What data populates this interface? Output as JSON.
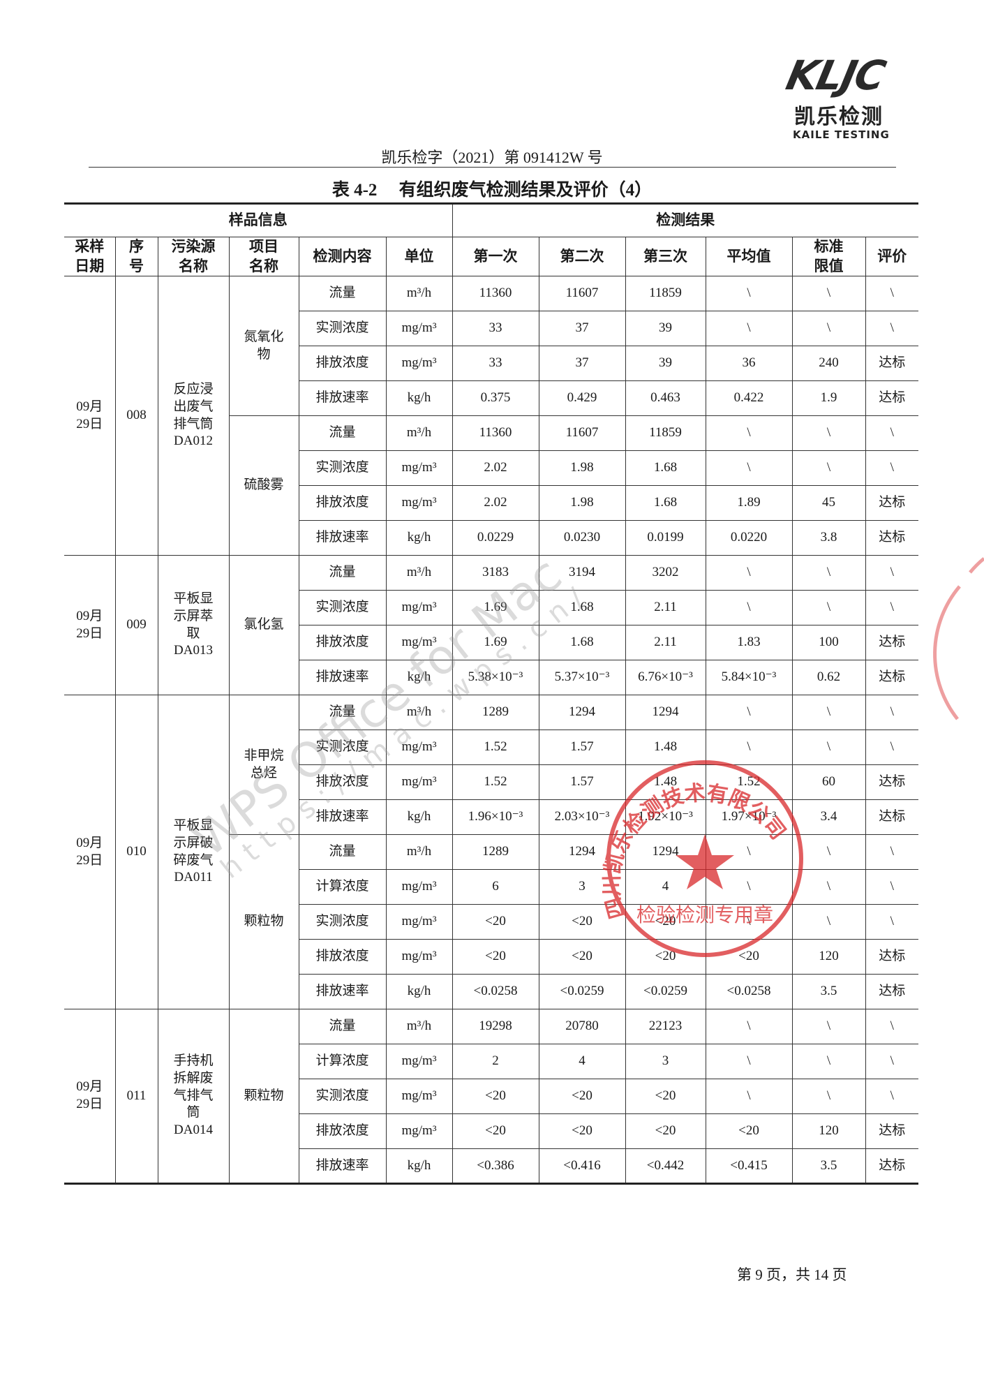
{
  "header": {
    "logo": "KLJC",
    "brand": "凯乐检测",
    "brand_en": "KAILE TESTING",
    "doc_no": "凯乐检字（2021）第 091412W 号"
  },
  "table": {
    "title": "表 4-2　 有组织废气检测结果及评价（4）",
    "group_headers": [
      "样品信息",
      "检测结果"
    ],
    "columns": [
      "采样\n日期",
      "序\n号",
      "污染源\n名称",
      "项目\n名称",
      "检测内容",
      "单位",
      "第一次",
      "第二次",
      "第三次",
      "平均值",
      "标准\n限值",
      "评价"
    ],
    "groups": [
      {
        "date": "09月\n29日",
        "seq": "008",
        "source": "反应浸\n出废气\n排气筒\nDA012",
        "items": [
          {
            "name": "氮氧化\n物",
            "rows": [
              [
                "流量",
                "m³/h",
                "11360",
                "11607",
                "11859",
                "\\",
                "\\",
                "\\"
              ],
              [
                "实测浓度",
                "mg/m³",
                "33",
                "37",
                "39",
                "\\",
                "\\",
                "\\"
              ],
              [
                "排放浓度",
                "mg/m³",
                "33",
                "37",
                "39",
                "36",
                "240",
                "达标"
              ],
              [
                "排放速率",
                "kg/h",
                "0.375",
                "0.429",
                "0.463",
                "0.422",
                "1.9",
                "达标"
              ]
            ]
          },
          {
            "name": "硫酸雾",
            "rows": [
              [
                "流量",
                "m³/h",
                "11360",
                "11607",
                "11859",
                "\\",
                "\\",
                "\\"
              ],
              [
                "实测浓度",
                "mg/m³",
                "2.02",
                "1.98",
                "1.68",
                "\\",
                "\\",
                "\\"
              ],
              [
                "排放浓度",
                "mg/m³",
                "2.02",
                "1.98",
                "1.68",
                "1.89",
                "45",
                "达标"
              ],
              [
                "排放速率",
                "kg/h",
                "0.0229",
                "0.0230",
                "0.0199",
                "0.0220",
                "3.8",
                "达标"
              ]
            ]
          }
        ]
      },
      {
        "date": "09月\n29日",
        "seq": "009",
        "source": "平板显\n示屏萃\n取\nDA013",
        "items": [
          {
            "name": "氯化氢",
            "rows": [
              [
                "流量",
                "m³/h",
                "3183",
                "3194",
                "3202",
                "\\",
                "\\",
                "\\"
              ],
              [
                "实测浓度",
                "mg/m³",
                "1.69",
                "1.68",
                "2.11",
                "\\",
                "\\",
                "\\"
              ],
              [
                "排放浓度",
                "mg/m³",
                "1.69",
                "1.68",
                "2.11",
                "1.83",
                "100",
                "达标"
              ],
              [
                "排放速率",
                "kg/h",
                "5.38×10⁻³",
                "5.37×10⁻³",
                "6.76×10⁻³",
                "5.84×10⁻³",
                "0.62",
                "达标"
              ]
            ]
          }
        ]
      },
      {
        "date": "09月\n29日",
        "seq": "010",
        "source": "平板显\n示屏破\n碎废气\nDA011",
        "items": [
          {
            "name": "非甲烷\n总烃",
            "rows": [
              [
                "流量",
                "m³/h",
                "1289",
                "1294",
                "1294",
                "\\",
                "\\",
                "\\"
              ],
              [
                "实测浓度",
                "mg/m³",
                "1.52",
                "1.57",
                "1.48",
                "\\",
                "\\",
                "\\"
              ],
              [
                "排放浓度",
                "mg/m³",
                "1.52",
                "1.57",
                "1.48",
                "1.52",
                "60",
                "达标"
              ],
              [
                "排放速率",
                "kg/h",
                "1.96×10⁻³",
                "2.03×10⁻³",
                "1.92×10⁻³",
                "1.97×10⁻³",
                "3.4",
                "达标"
              ]
            ]
          },
          {
            "name": "颗粒物",
            "rows": [
              [
                "流量",
                "m³/h",
                "1289",
                "1294",
                "1294",
                "\\",
                "\\",
                "\\"
              ],
              [
                "计算浓度",
                "mg/m³",
                "6",
                "3",
                "4",
                "\\",
                "\\",
                "\\"
              ],
              [
                "实测浓度",
                "mg/m³",
                "<20",
                "<20",
                "<20",
                "\\",
                "\\",
                "\\"
              ],
              [
                "排放浓度",
                "mg/m³",
                "<20",
                "<20",
                "<20",
                "<20",
                "120",
                "达标"
              ],
              [
                "排放速率",
                "kg/h",
                "<0.0258",
                "<0.0259",
                "<0.0259",
                "<0.0258",
                "3.5",
                "达标"
              ]
            ]
          }
        ]
      },
      {
        "date": "09月\n29日",
        "seq": "011",
        "source": "手持机\n拆解废\n气排气\n筒\nDA014",
        "items": [
          {
            "name": "颗粒物",
            "rows": [
              [
                "流量",
                "m³/h",
                "19298",
                "20780",
                "22123",
                "\\",
                "\\",
                "\\"
              ],
              [
                "计算浓度",
                "mg/m³",
                "2",
                "4",
                "3",
                "\\",
                "\\",
                "\\"
              ],
              [
                "实测浓度",
                "mg/m³",
                "<20",
                "<20",
                "<20",
                "\\",
                "\\",
                "\\"
              ],
              [
                "排放浓度",
                "mg/m³",
                "<20",
                "<20",
                "<20",
                "<20",
                "120",
                "达标"
              ],
              [
                "排放速率",
                "kg/h",
                "<0.386",
                "<0.416",
                "<0.442",
                "<0.415",
                "3.5",
                "达标"
              ]
            ]
          }
        ]
      }
    ]
  },
  "watermark": [
    "WPS Office for Mac",
    "https://mac.wps.cn/"
  ],
  "stamp": [
    "四川凯乐检测技术有限公司",
    "检验检测专用章"
  ],
  "footer": {
    "page": "第 9 页，共 14 页"
  }
}
